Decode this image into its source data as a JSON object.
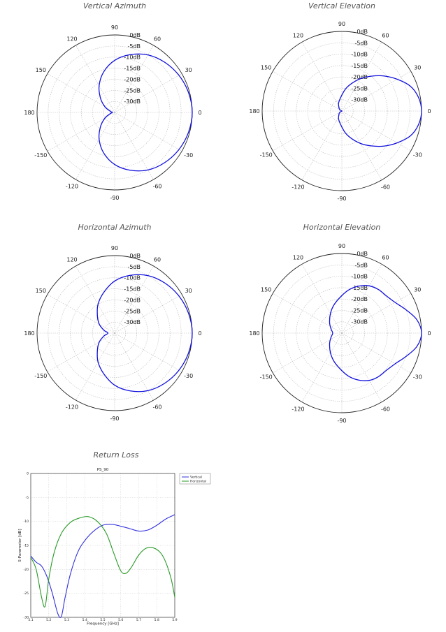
{
  "chart_data": [
    {
      "type": "polar",
      "title": "Vertical Azimuth",
      "unit": "dB",
      "r_range": [
        -35,
        0
      ],
      "r_ticks": [
        "0dB",
        "-5dB",
        "-10dB",
        "-15dB",
        "-20dB",
        "-25dB",
        "-30dB"
      ],
      "angle_ticks": [
        "0",
        "30",
        "60",
        "90",
        "120",
        "150",
        "180",
        "-150",
        "-120",
        "-90",
        "-60",
        "-30"
      ],
      "series": [
        {
          "color": "#1010dd",
          "angles": [
            0,
            15,
            30,
            45,
            60,
            75,
            90,
            105,
            120,
            135,
            150,
            165,
            180,
            -165,
            -150,
            -135,
            -120,
            -105,
            -90,
            -75,
            -60,
            -45,
            -30,
            -15
          ],
          "values": [
            0,
            -0.5,
            -1.5,
            -3,
            -5,
            -8,
            -11.5,
            -16,
            -21,
            -26,
            -30,
            -33,
            -34,
            -33,
            -30,
            -26,
            -21,
            -16,
            -11.5,
            -8,
            -5,
            -3,
            -1.5,
            -0.5
          ]
        }
      ]
    },
    {
      "type": "polar",
      "title": "Vertical Elevation",
      "unit": "dB",
      "r_range": [
        -35,
        0
      ],
      "r_ticks": [
        "0dB",
        "-5dB",
        "-10dB",
        "-15dB",
        "-20dB",
        "-25dB",
        "-30dB"
      ],
      "angle_ticks": [
        "0",
        "30",
        "60",
        "90",
        "120",
        "150",
        "180",
        "-150",
        "-120",
        "-90",
        "-60",
        "-30"
      ],
      "series": [
        {
          "color": "#1010dd",
          "angles": [
            0,
            10,
            20,
            30,
            40,
            50,
            60,
            70,
            80,
            90,
            110,
            130,
            150,
            180,
            -150,
            -130,
            -110,
            -90,
            -80,
            -70,
            -60,
            -50,
            -40,
            -30,
            -20,
            -10
          ],
          "values": [
            0,
            -0.8,
            -3,
            -7,
            -11,
            -15,
            -18.5,
            -22,
            -25,
            -28,
            -31,
            -33,
            -34,
            -35,
            -34,
            -33,
            -31,
            -28,
            -25,
            -22,
            -18.5,
            -15,
            -11,
            -7,
            -3,
            -0.8
          ]
        }
      ]
    },
    {
      "type": "polar",
      "title": "Horizontal Azimuth",
      "unit": "dB",
      "r_range": [
        -35,
        0
      ],
      "r_ticks": [
        "0dB",
        "-5dB",
        "-10dB",
        "-15dB",
        "-20dB",
        "-25dB",
        "-30dB"
      ],
      "angle_ticks": [
        "0",
        "30",
        "60",
        "90",
        "120",
        "150",
        "180",
        "-150",
        "-120",
        "-90",
        "-60",
        "-30"
      ],
      "series": [
        {
          "color": "#1010dd",
          "angles": [
            0,
            15,
            30,
            45,
            60,
            75,
            90,
            105,
            120,
            135,
            150,
            165,
            180,
            -165,
            -150,
            -135,
            -120,
            -105,
            -90,
            -75,
            -60,
            -45,
            -30,
            -15
          ],
          "values": [
            0,
            -0.5,
            -1.5,
            -3,
            -5,
            -8,
            -11.5,
            -16,
            -20,
            -24,
            -27,
            -30,
            -32,
            -30,
            -27,
            -24,
            -20,
            -16,
            -11.5,
            -8,
            -5,
            -3,
            -1.5,
            -0.5
          ]
        }
      ]
    },
    {
      "type": "polar",
      "title": "Horizontal Elevation",
      "unit": "dB",
      "r_range": [
        -35,
        0
      ],
      "r_ticks": [
        "0dB",
        "-5dB",
        "-10dB",
        "-15dB",
        "-20dB",
        "-25dB",
        "-30dB"
      ],
      "angle_ticks": [
        "0",
        "30",
        "60",
        "90",
        "120",
        "150",
        "180",
        "-150",
        "-120",
        "-90",
        "-60",
        "-30"
      ],
      "series": [
        {
          "color": "#1010dd",
          "angles": [
            0,
            10,
            20,
            30,
            40,
            50,
            60,
            70,
            80,
            90,
            105,
            120,
            140,
            160,
            180,
            -160,
            -140,
            -120,
            -105,
            -90,
            -80,
            -70,
            -60,
            -50,
            -40,
            -30,
            -20,
            -10
          ],
          "values": [
            0,
            -1.5,
            -5,
            -8,
            -9.5,
            -10,
            -11,
            -13,
            -15.5,
            -18.5,
            -22,
            -25,
            -28,
            -30,
            -31,
            -30,
            -28,
            -25,
            -22,
            -18.5,
            -15.5,
            -13,
            -11,
            -10,
            -9.5,
            -8,
            -5,
            -1.5
          ]
        }
      ]
    },
    {
      "type": "line",
      "title": "Return Loss",
      "subtitle": "PS_90",
      "xlabel": "Frequency [GHz]",
      "ylabel": "S-Parameter [dB]",
      "xlim": [
        5.1,
        5.9
      ],
      "ylim": [
        -30,
        0
      ],
      "xticks": [
        5.1,
        5.2,
        5.3,
        5.4,
        5.5,
        5.6,
        5.7,
        5.8,
        5.9
      ],
      "yticks": [
        0,
        -5,
        -10,
        -15,
        -20,
        -25,
        -30
      ],
      "series": [
        {
          "name": "Vertical",
          "color": "#3333dd",
          "x": [
            5.1,
            5.13,
            5.16,
            5.19,
            5.22,
            5.25,
            5.27,
            5.29,
            5.32,
            5.36,
            5.4,
            5.45,
            5.5,
            5.55,
            5.6,
            5.65,
            5.7,
            5.75,
            5.8,
            5.85,
            5.9
          ],
          "y": [
            -17.2,
            -18.5,
            -19.3,
            -21.5,
            -25,
            -29.2,
            -29.8,
            -26,
            -21,
            -16.5,
            -14,
            -12,
            -10.8,
            -10.6,
            -11,
            -11.5,
            -12,
            -11.8,
            -10.8,
            -9.5,
            -8.6
          ]
        },
        {
          "name": "Horizontal",
          "color": "#2a9a2a",
          "x": [
            5.1,
            5.13,
            5.16,
            5.18,
            5.2,
            5.23,
            5.27,
            5.32,
            5.37,
            5.42,
            5.47,
            5.52,
            5.56,
            5.6,
            5.63,
            5.66,
            5.7,
            5.74,
            5.78,
            5.82,
            5.85,
            5.88,
            5.9
          ],
          "y": [
            -17.5,
            -20,
            -25.8,
            -27.7,
            -22,
            -16.5,
            -12.5,
            -10.2,
            -9.3,
            -9.0,
            -10,
            -12.5,
            -16.5,
            -20.3,
            -20.8,
            -19.5,
            -17,
            -15.6,
            -15.5,
            -16.5,
            -18.5,
            -22,
            -25.8
          ]
        }
      ]
    }
  ]
}
